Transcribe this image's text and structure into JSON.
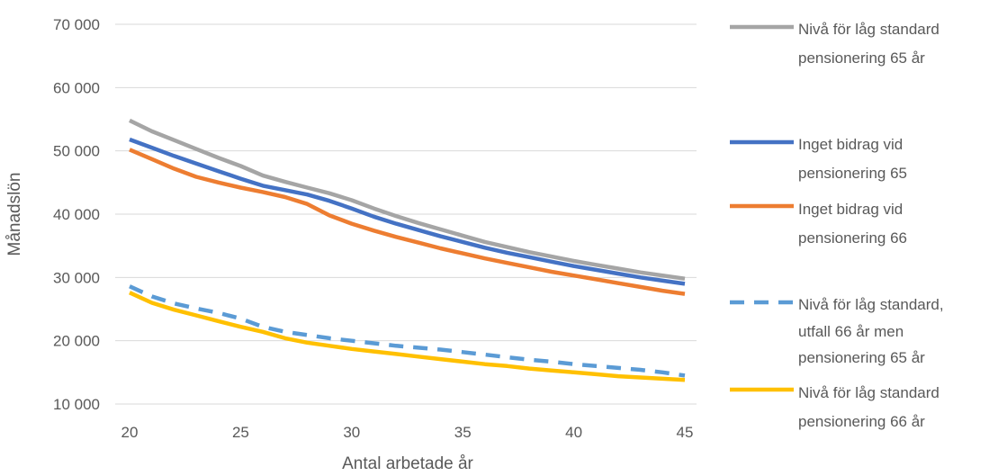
{
  "chart_data": {
    "type": "line",
    "title": "",
    "xlabel": "Antal arbetade år",
    "ylabel": "Månadslön",
    "xlim": [
      20,
      45
    ],
    "ylim": [
      10000,
      70000
    ],
    "x_ticks": [
      "20",
      "25",
      "30",
      "35",
      "40",
      "45"
    ],
    "x_tick_values": [
      20,
      25,
      30,
      35,
      40,
      45
    ],
    "y_ticks": [
      "10 000",
      "20 000",
      "30 000",
      "40 000",
      "50 000",
      "60 000",
      "70 000"
    ],
    "y_tick_values": [
      10000,
      20000,
      30000,
      40000,
      50000,
      60000,
      70000
    ],
    "grid": "horizontal",
    "legend_position": "right",
    "x": [
      20,
      21,
      22,
      23,
      24,
      25,
      26,
      27,
      28,
      29,
      30,
      31,
      32,
      33,
      34,
      35,
      36,
      37,
      38,
      39,
      40,
      41,
      42,
      43,
      44,
      45
    ],
    "series": [
      {
        "name": "Nivå för låg standard pensionering 65 år",
        "legend_lines": [
          "Nivå för låg standard",
          "pensionering 65 år"
        ],
        "color": "#a5a5a5",
        "dashed": false,
        "values": [
          54800,
          53100,
          51700,
          50300,
          48900,
          47600,
          46100,
          45100,
          44200,
          43300,
          42200,
          40900,
          39700,
          38600,
          37600,
          36600,
          35600,
          34800,
          34000,
          33300,
          32600,
          32000,
          31400,
          30800,
          30300,
          29800
        ]
      },
      {
        "name": "Inget bidrag vid pensionering 65",
        "legend_lines": [
          "Inget bidrag vid",
          "pensionering 65"
        ],
        "color": "#4472c4",
        "dashed": false,
        "values": [
          51800,
          50500,
          49200,
          48000,
          46800,
          45600,
          44500,
          43800,
          43100,
          42100,
          40900,
          39600,
          38500,
          37500,
          36500,
          35600,
          34700,
          33900,
          33200,
          32500,
          31800,
          31200,
          30600,
          30000,
          29500,
          29000
        ]
      },
      {
        "name": "Inget bidrag vid pensionering 66",
        "legend_lines": [
          "Inget bidrag vid",
          "pensionering 66"
        ],
        "color": "#ed7d31",
        "dashed": false,
        "values": [
          50200,
          48700,
          47200,
          45900,
          45000,
          44200,
          43500,
          42700,
          41600,
          39800,
          38500,
          37400,
          36400,
          35500,
          34600,
          33800,
          33000,
          32300,
          31600,
          30900,
          30300,
          29700,
          29100,
          28500,
          27900,
          27400
        ]
      },
      {
        "name": "Nivå för låg standard, utfall 66 år men pensionering 65 år",
        "legend_lines": [
          "Nivå för låg standard,",
          "utfall 66 år men",
          "pensionering 65 år"
        ],
        "color": "#5b9bd5",
        "dashed": true,
        "values": [
          28600,
          27000,
          25900,
          25100,
          24400,
          23500,
          22200,
          21400,
          20900,
          20400,
          20000,
          19600,
          19200,
          18900,
          18600,
          18200,
          17800,
          17400,
          17000,
          16700,
          16300,
          16000,
          15700,
          15400,
          15000,
          14500
        ]
      },
      {
        "name": "Nivå för låg standard pensionering 66 år",
        "legend_lines": [
          "Nivå för låg standard",
          "pensionering 66 år"
        ],
        "color": "#ffc000",
        "dashed": false,
        "values": [
          27600,
          26000,
          24900,
          24000,
          23100,
          22200,
          21400,
          20400,
          19700,
          19200,
          18700,
          18300,
          17900,
          17500,
          17100,
          16700,
          16300,
          16000,
          15600,
          15300,
          15000,
          14700,
          14400,
          14200,
          14000,
          13800
        ]
      }
    ]
  }
}
